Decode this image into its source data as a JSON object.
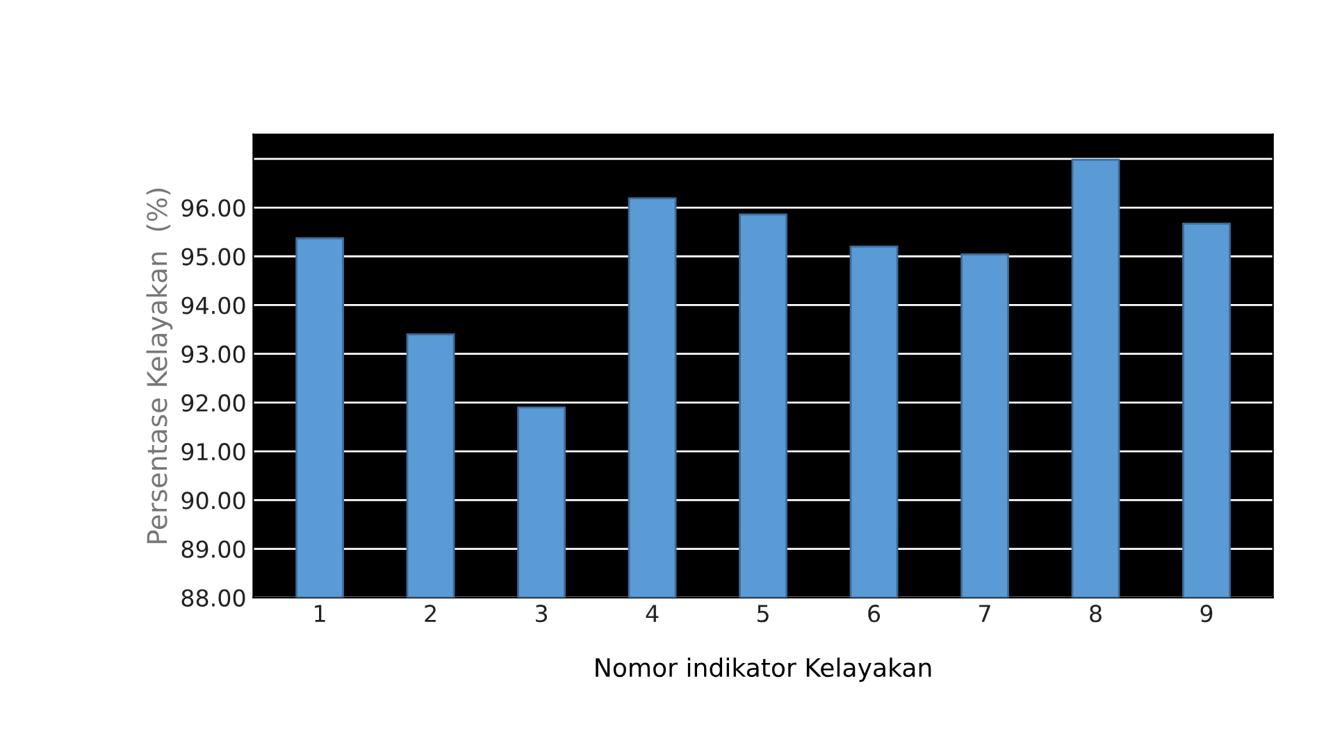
{
  "chart_data": {
    "type": "bar",
    "xlabel": "Nomor indikator Kelayakan",
    "ylabel": "Persentase Kelayakan  (%)",
    "categories": [
      "1",
      "2",
      "3",
      "4",
      "5",
      "6",
      "7",
      "8",
      "9"
    ],
    "values": [
      95.37,
      93.4,
      91.9,
      96.19,
      95.86,
      95.2,
      95.04,
      96.98,
      95.67
    ],
    "color": "#5b9bd5",
    "ylim": [
      88,
      97.5
    ],
    "yticks": [
      {
        "value": 88,
        "label": "88.00"
      },
      {
        "value": 89,
        "label": "89.00"
      },
      {
        "value": 90,
        "label": "90.00"
      },
      {
        "value": 91,
        "label": "91.00"
      },
      {
        "value": 92,
        "label": "92.00"
      },
      {
        "value": 93,
        "label": "93.00"
      },
      {
        "value": 94,
        "label": "94.00"
      },
      {
        "value": 95,
        "label": "95.00"
      },
      {
        "value": 96,
        "label": "96.00"
      },
      {
        "value": 97,
        "label": null
      }
    ],
    "grid": "y"
  }
}
